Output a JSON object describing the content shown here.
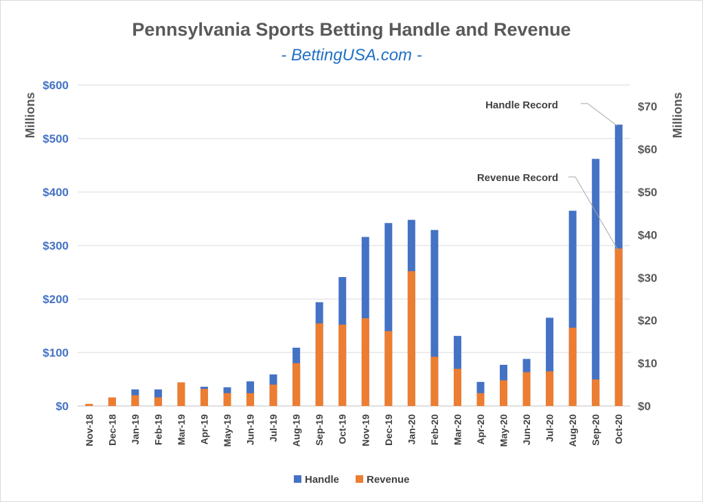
{
  "chart_data": {
    "type": "bar",
    "title": "Pennsylvania Sports Betting Handle and Revenue",
    "subtitle": "- BettingUSA.com -",
    "categories": [
      "Nov-18",
      "Dec-18",
      "Jan-19",
      "Feb-19",
      "Mar-19",
      "Apr-19",
      "May-19",
      "Jun-19",
      "Jul-19",
      "Aug-19",
      "Sep-19",
      "Oct-19",
      "Nov-19",
      "Dec-19",
      "Jan-20",
      "Feb-20",
      "Mar-20",
      "Apr-20",
      "May-20",
      "Jun-20",
      "Jul-20",
      "Aug-20",
      "Sep-20",
      "Oct-20"
    ],
    "series": [
      {
        "name": "Handle",
        "axis": "left",
        "color": "#4472c4",
        "values": [
          1.4,
          16,
          31,
          31,
          44,
          36,
          35,
          46,
          59,
          109,
          194,
          241,
          316,
          342,
          348,
          329,
          131,
          45,
          77,
          88,
          165,
          365,
          462,
          526
        ]
      },
      {
        "name": "Revenue",
        "axis": "right",
        "color": "#ed7d31",
        "values": [
          0.5,
          2,
          2.5,
          2,
          5.5,
          4,
          3,
          3,
          5,
          10,
          19.3,
          19,
          20.5,
          17.5,
          31.5,
          11.5,
          8.7,
          3,
          6,
          7.9,
          8.1,
          18.3,
          6.2,
          36.8
        ]
      }
    ],
    "left_axis": {
      "label": "Millions",
      "ylim": [
        0,
        600
      ],
      "ticks": [
        "$0",
        "$100",
        "$200",
        "$300",
        "$400",
        "$500",
        "$600"
      ]
    },
    "right_axis": {
      "label": "Millions",
      "ylim": [
        0,
        75
      ],
      "ticks": [
        "$0",
        "$10",
        "$20",
        "$30",
        "$40",
        "$50",
        "$60",
        "$70"
      ]
    },
    "annotations": [
      {
        "text": "Handle Record",
        "target": "Oct-20",
        "series": "Handle"
      },
      {
        "text": "Revenue Record",
        "target": "Oct-20",
        "series": "Revenue"
      }
    ],
    "legend": {
      "position": "bottom",
      "entries": [
        "Handle",
        "Revenue"
      ]
    },
    "grid": true
  }
}
